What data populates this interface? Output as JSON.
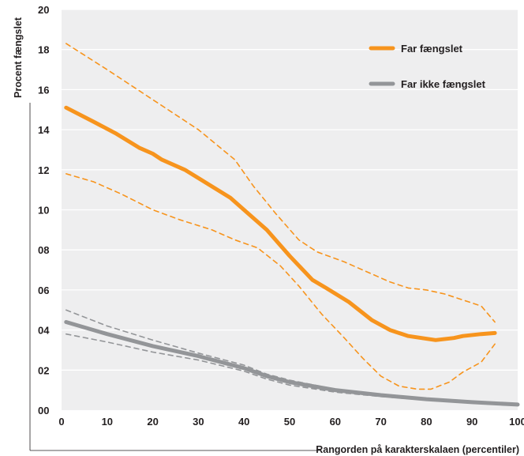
{
  "chart_data": {
    "type": "line",
    "title": "",
    "xlabel": "Rangorden på karakterskalaen (percentiler)",
    "ylabel": "Procent fængslet",
    "xlim": [
      0,
      100
    ],
    "ylim": [
      0,
      20
    ],
    "x_ticks": [
      "0",
      "10",
      "20",
      "30",
      "40",
      "50",
      "60",
      "70",
      "80",
      "90",
      "100"
    ],
    "y_ticks": [
      "00",
      "02",
      "04",
      "06",
      "08",
      "10",
      "12",
      "14",
      "16",
      "18",
      "20"
    ],
    "grid": true,
    "legend_position": "top-right",
    "colors": {
      "far_faengslet": "#f7941d",
      "far_ikke_faengslet": "#939598",
      "plot_background": "#eeeeef",
      "text": "#231f20"
    },
    "series": [
      {
        "name": "Far fængslet",
        "color": "#f7941d",
        "x": [
          1,
          7,
          12,
          17,
          20,
          22,
          27,
          32,
          37,
          41,
          45,
          50,
          55,
          58,
          63,
          68,
          72,
          76,
          82,
          86,
          88,
          92,
          95
        ],
        "y": [
          15.1,
          14.4,
          13.8,
          13.1,
          12.8,
          12.5,
          12.0,
          11.3,
          10.6,
          9.8,
          9.0,
          7.7,
          6.5,
          6.1,
          5.4,
          4.5,
          4.0,
          3.7,
          3.5,
          3.6,
          3.7,
          3.8,
          3.85
        ]
      },
      {
        "name": "",
        "color": "#f7941d",
        "style": "dashed",
        "x": [
          1,
          10,
          20,
          30,
          38,
          42,
          47,
          52,
          56,
          62,
          68,
          72,
          76,
          80,
          84,
          88,
          92,
          95
        ],
        "y": [
          18.3,
          17.0,
          15.5,
          14.0,
          12.5,
          11.2,
          9.8,
          8.5,
          7.9,
          7.4,
          6.8,
          6.4,
          6.1,
          6.0,
          5.8,
          5.5,
          5.2,
          4.4
        ]
      },
      {
        "name": "",
        "color": "#f7941d",
        "style": "dashed",
        "x": [
          1,
          7,
          13,
          20,
          26,
          33,
          38,
          43,
          48,
          52,
          57,
          62,
          66,
          70,
          74,
          78,
          81,
          85,
          88,
          92,
          95
        ],
        "y": [
          11.8,
          11.4,
          10.8,
          10.0,
          9.5,
          9.0,
          8.5,
          8.1,
          7.2,
          6.2,
          4.8,
          3.6,
          2.6,
          1.7,
          1.2,
          1.05,
          1.05,
          1.4,
          1.9,
          2.4,
          3.3
        ]
      },
      {
        "name": "Far ikke fængslet",
        "color": "#939598",
        "x": [
          1,
          10,
          20,
          30,
          40,
          45,
          50,
          60,
          70,
          80,
          90,
          100
        ],
        "y": [
          4.4,
          3.8,
          3.2,
          2.7,
          2.1,
          1.7,
          1.4,
          1.0,
          0.75,
          0.55,
          0.4,
          0.28
        ]
      },
      {
        "name": "",
        "color": "#939598",
        "style": "dashed",
        "x": [
          1,
          10,
          20,
          30,
          40,
          45,
          50,
          60,
          70,
          80,
          90,
          100
        ],
        "y": [
          5.0,
          4.2,
          3.5,
          2.85,
          2.25,
          1.8,
          1.5,
          1.05,
          0.8,
          0.6,
          0.45,
          0.32
        ]
      },
      {
        "name": "",
        "color": "#939598",
        "style": "dashed",
        "x": [
          1,
          10,
          20,
          30,
          40,
          45,
          50,
          60,
          70,
          80,
          90,
          100
        ],
        "y": [
          3.8,
          3.4,
          2.9,
          2.5,
          1.95,
          1.55,
          1.25,
          0.9,
          0.68,
          0.5,
          0.36,
          0.24
        ]
      }
    ]
  }
}
